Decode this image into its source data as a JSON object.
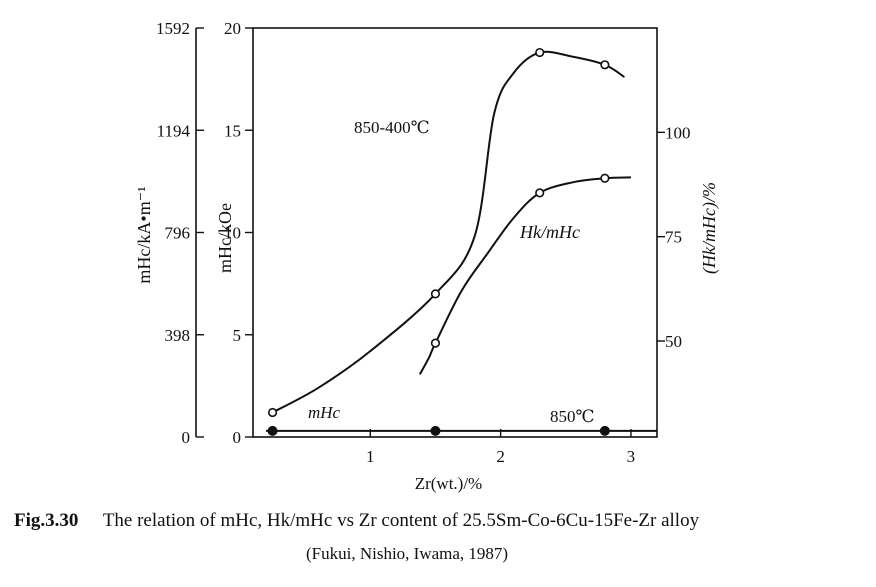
{
  "chart_data": {
    "type": "line",
    "x": {
      "label": "Zr(wt.)/%",
      "ticks": [
        1,
        2,
        3
      ],
      "range": [
        0.1,
        3.2
      ]
    },
    "y_left": {
      "label_koe": "mHc/kOe",
      "label_ka": "mHc/kA•m⁻¹",
      "ticks_koe": [
        0,
        5,
        10,
        15,
        20
      ],
      "ticks_ka": [
        "0",
        "398",
        "796",
        "1194",
        "1592"
      ],
      "range": [
        0,
        20
      ]
    },
    "y_right": {
      "label": "(Hk/mHc)/%",
      "ticks": [
        50,
        75,
        100
      ],
      "range": [
        27,
        125
      ]
    },
    "series": [
      {
        "name": "mHc 850-400℃",
        "axis": "left",
        "points": [
          [
            0.25,
            1.2
          ],
          [
            1.5,
            7.0
          ],
          [
            2.3,
            18.8
          ],
          [
            2.8,
            18.2
          ]
        ],
        "curve": [
          [
            0.25,
            1.2
          ],
          [
            0.6,
            2.4
          ],
          [
            1.0,
            4.2
          ],
          [
            1.5,
            7.0
          ],
          [
            1.8,
            9.8
          ],
          [
            1.95,
            15.8
          ],
          [
            2.1,
            17.8
          ],
          [
            2.3,
            18.8
          ],
          [
            2.55,
            18.6
          ],
          [
            2.8,
            18.2
          ],
          [
            2.95,
            17.6
          ]
        ]
      },
      {
        "name": "Hk/mHc 850-400℃",
        "axis": "right",
        "points": [
          [
            1.5,
            49.5
          ],
          [
            2.3,
            85.5
          ],
          [
            2.8,
            89.0
          ]
        ],
        "curve": [
          [
            1.38,
            42.0
          ],
          [
            1.45,
            46.0
          ],
          [
            1.5,
            49.5
          ],
          [
            1.7,
            62.0
          ],
          [
            1.9,
            71.0
          ],
          [
            2.1,
            79.5
          ],
          [
            2.3,
            85.5
          ],
          [
            2.55,
            88.0
          ],
          [
            2.8,
            89.0
          ],
          [
            3.0,
            89.2
          ]
        ]
      },
      {
        "name": "mHc 850℃",
        "axis": "left",
        "points": [
          [
            0.25,
            0.3
          ],
          [
            1.5,
            0.3
          ],
          [
            2.8,
            0.3
          ]
        ],
        "curve": [
          [
            0.2,
            0.3
          ],
          [
            3.2,
            0.3
          ]
        ]
      }
    ],
    "annotations": {
      "label_850_400": "850-400℃",
      "label_hk": "Hk/mHc",
      "label_mhc": "mHc",
      "label_850": "850℃"
    }
  },
  "caption": {
    "fig_label": "Fig.3.30",
    "text": "The relation of mHc, Hk/mHc vs Zr content of 25.5Sm-Co-6Cu-15Fe-Zr alloy",
    "source": "(Fukui, Nishio, Iwama, 1987)"
  }
}
